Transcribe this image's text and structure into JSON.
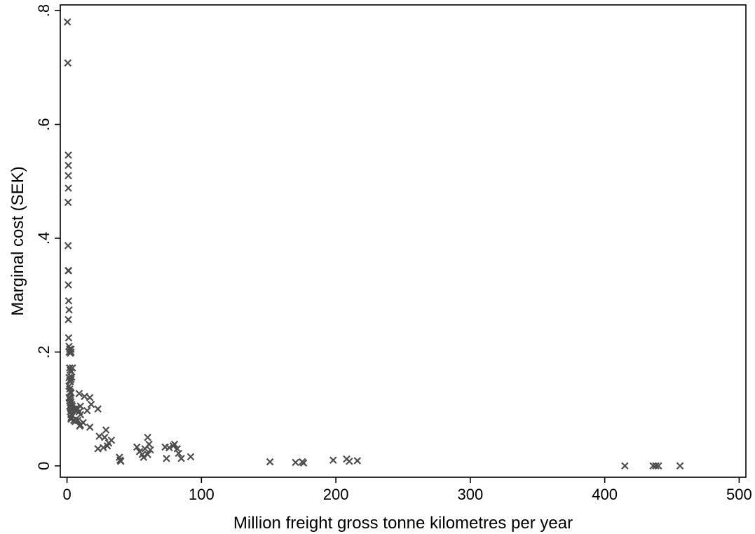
{
  "chart_data": {
    "type": "scatter",
    "title": "",
    "xlabel": "Million freight gross tonne kilometres per year",
    "ylabel": "Marginal cost (SEK)",
    "xlim": [
      -5,
      505
    ],
    "ylim": [
      -0.02,
      0.81
    ],
    "x_ticks": [
      0,
      100,
      200,
      300,
      400,
      500
    ],
    "x_tick_labels": [
      "0",
      "100",
      "200",
      "300",
      "400",
      "500"
    ],
    "y_ticks": [
      0,
      0.2,
      0.4,
      0.6,
      0.8
    ],
    "y_tick_labels": [
      "0",
      ".2",
      ".4",
      ".6",
      ".8"
    ],
    "grid": false,
    "legend": "none",
    "marker": "x",
    "marker_color": "#4d4d4d",
    "series": [
      {
        "x": [
          0.3,
          0.6,
          1.0,
          1.0,
          1.0,
          1.0,
          0.8,
          0.8,
          0.9,
          1.2,
          1.0,
          1.2,
          1.5,
          1.0,
          1.2,
          1.5,
          1.5,
          2.0,
          2.5,
          3.0,
          3.0,
          2.0,
          2.5,
          3.0,
          4.0,
          1.5,
          2.0,
          2.5,
          3.0,
          3.5,
          1.5,
          2.0,
          2.5,
          3.0,
          1.5,
          2.0,
          2.5,
          3.0,
          2.0,
          2.5,
          3.0,
          3.5,
          4.0,
          2.5,
          3.0,
          4.0,
          5.0,
          6.0,
          7.0,
          8.0,
          9.0,
          10.0,
          3.0,
          6.0,
          8.0,
          10.0,
          12.0,
          3.0,
          4.0,
          5.0,
          9.0,
          9.5,
          13.0,
          15.0,
          18.0,
          17.0,
          23.0,
          10.0,
          17.0,
          24.0,
          23.0,
          28.0,
          30.0,
          27.0,
          29.0,
          31.0,
          33.0,
          39.0,
          39.5,
          40.0,
          52.0,
          54.0,
          56.0,
          57.0,
          58.0,
          60.0,
          60.0,
          61.0,
          62.0,
          73.0,
          74.0,
          76.0,
          79.0,
          80.0,
          82.0,
          83.0,
          85.0,
          92.0,
          151.0,
          170.0,
          175.0,
          176.0,
          198.0,
          208.0,
          210.0,
          216.0,
          415.0,
          436.0,
          438.0,
          440.0,
          456.0
        ],
        "y": [
          0.78,
          0.708,
          0.546,
          0.528,
          0.51,
          0.488,
          0.463,
          0.387,
          0.343,
          0.343,
          0.318,
          0.29,
          0.274,
          0.257,
          0.225,
          0.21,
          0.2,
          0.205,
          0.198,
          0.2,
          0.205,
          0.172,
          0.168,
          0.165,
          0.172,
          0.155,
          0.15,
          0.148,
          0.152,
          0.156,
          0.14,
          0.135,
          0.13,
          0.128,
          0.12,
          0.118,
          0.115,
          0.112,
          0.105,
          0.102,
          0.1,
          0.108,
          0.098,
          0.095,
          0.09,
          0.105,
          0.1,
          0.098,
          0.102,
          0.1,
          0.095,
          0.09,
          0.085,
          0.078,
          0.08,
          0.072,
          0.076,
          0.082,
          0.088,
          0.08,
          0.127,
          0.07,
          0.122,
          0.097,
          0.108,
          0.068,
          0.1,
          0.105,
          0.12,
          0.052,
          0.03,
          0.05,
          0.035,
          0.032,
          0.063,
          0.04,
          0.045,
          0.015,
          0.01,
          0.008,
          0.033,
          0.025,
          0.02,
          0.015,
          0.03,
          0.02,
          0.05,
          0.038,
          0.028,
          0.033,
          0.013,
          0.032,
          0.035,
          0.038,
          0.03,
          0.022,
          0.013,
          0.016,
          0.007,
          0.006,
          0.007,
          0.005,
          0.01,
          0.012,
          0.008,
          0.009,
          0.0,
          0.0,
          0.0,
          0.0,
          0.0
        ]
      }
    ]
  }
}
